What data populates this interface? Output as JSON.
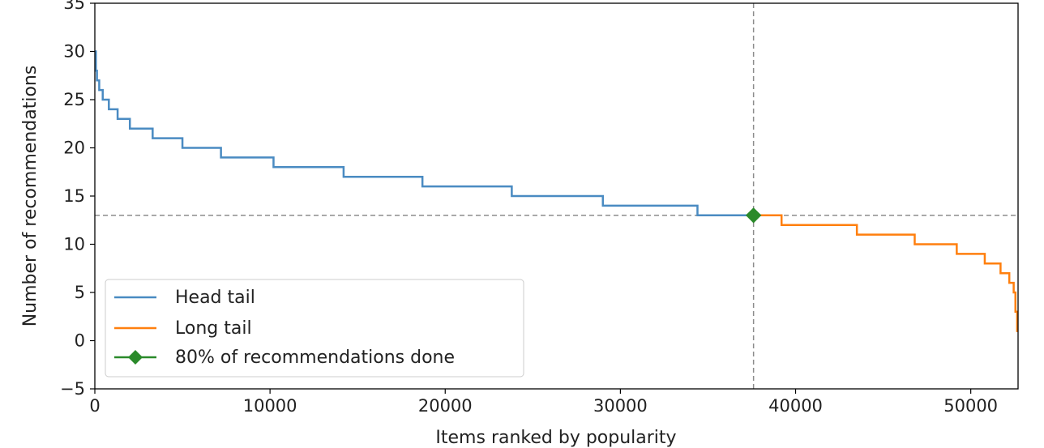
{
  "chart_data": {
    "type": "line",
    "xlabel": "Items ranked by popularity",
    "ylabel": "Number of recommendations",
    "xlim": [
      0,
      52700
    ],
    "ylim": [
      -5,
      35
    ],
    "xticks": [
      0,
      10000,
      20000,
      30000,
      40000,
      50000
    ],
    "yticks": [
      -5,
      0,
      5,
      10,
      15,
      20,
      25,
      30,
      35
    ],
    "ytick_labels": [
      "−5",
      "0",
      "5",
      "10",
      "15",
      "20",
      "25",
      "30",
      "35"
    ],
    "grid": false,
    "legend_position": "lower-left",
    "series": [
      {
        "name": "Head tail",
        "color": "#4a8bc2",
        "steps": [
          [
            0,
            30
          ],
          [
            60,
            28
          ],
          [
            120,
            27
          ],
          [
            250,
            26
          ],
          [
            450,
            25
          ],
          [
            800,
            24
          ],
          [
            1300,
            23
          ],
          [
            2000,
            22
          ],
          [
            3300,
            21
          ],
          [
            5000,
            20
          ],
          [
            7200,
            19
          ],
          [
            10200,
            18
          ],
          [
            14200,
            17
          ],
          [
            18700,
            16
          ],
          [
            23800,
            15
          ],
          [
            29000,
            14
          ],
          [
            34400,
            13
          ],
          [
            37600,
            13
          ]
        ]
      },
      {
        "name": "Long tail",
        "color": "#ff7f0e",
        "steps": [
          [
            37600,
            13
          ],
          [
            39200,
            12
          ],
          [
            43500,
            11
          ],
          [
            46800,
            10
          ],
          [
            49200,
            9
          ],
          [
            50800,
            8
          ],
          [
            51700,
            7
          ],
          [
            52200,
            6
          ],
          [
            52450,
            5
          ],
          [
            52550,
            3
          ],
          [
            52650,
            1
          ],
          [
            52700,
            1
          ]
        ]
      }
    ],
    "marker": {
      "name": "80% of recommendations done",
      "color": "#2a8a2a",
      "x": 37600,
      "y": 13,
      "reference_lines": "dashed gray vertical at x and horizontal at y"
    }
  }
}
